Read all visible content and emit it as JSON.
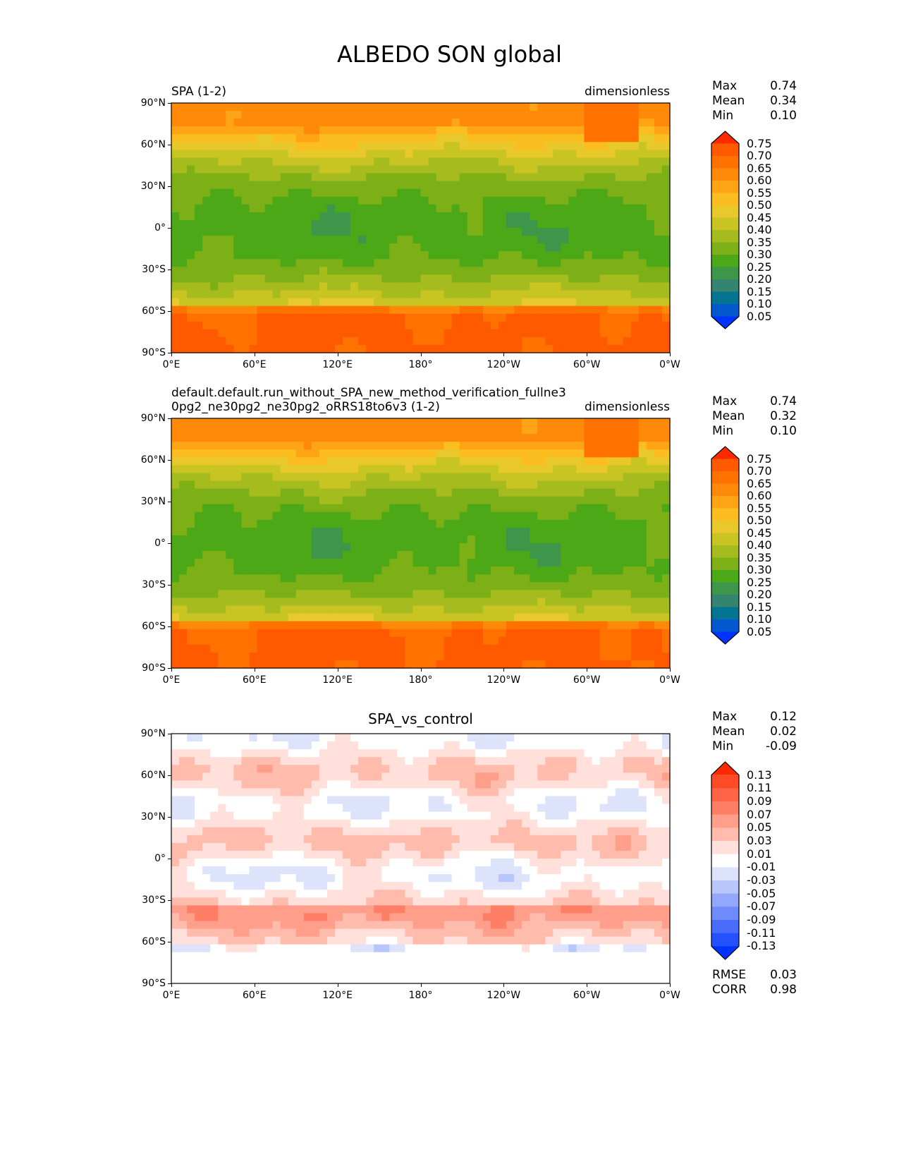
{
  "chart_data": {
    "type": "heatmap",
    "title": "ALBEDO SON global",
    "x_ticks": [
      "0°E",
      "60°E",
      "120°E",
      "180°",
      "120°W",
      "60°W",
      "0°W"
    ],
    "y_ticks": [
      "90°N",
      "60°N",
      "30°N",
      "0°",
      "30°S",
      "60°S",
      "90°S"
    ],
    "xlim": [
      0,
      360
    ],
    "ylim": [
      -90,
      90
    ],
    "panels": [
      {
        "title_left": "SPA (1-2)",
        "title_right": "dimensionless",
        "title_center": "",
        "stats": [
          {
            "label": "Max",
            "value": "0.74"
          },
          {
            "label": "Mean",
            "value": "0.34"
          },
          {
            "label": "Min",
            "value": "0.10"
          }
        ],
        "colorbar": {
          "levels": [
            "0.75",
            "0.70",
            "0.65",
            "0.60",
            "0.55",
            "0.50",
            "0.45",
            "0.40",
            "0.35",
            "0.30",
            "0.25",
            "0.20",
            "0.15",
            "0.10",
            "0.05"
          ],
          "colors": [
            "#ff2a00",
            "#ff5a00",
            "#ff7200",
            "#ff8a0a",
            "#ffa515",
            "#fbbd20",
            "#e8c82a",
            "#c8c422",
            "#a6bc1e",
            "#7cb016",
            "#4ca816",
            "#3e964a",
            "#348470",
            "#037592",
            "#0258cc",
            "#0033ff"
          ]
        },
        "mean_value": 0.34
      },
      {
        "title_left": "default.default.run_without_SPA_new_method_verification_fullne30pg2_ne30pg2_ne30pg2_oRRS18to6v3 (1-2)",
        "title_right": "dimensionless",
        "title_center": "",
        "stats": [
          {
            "label": "Max",
            "value": "0.74"
          },
          {
            "label": "Mean",
            "value": "0.32"
          },
          {
            "label": "Min",
            "value": "0.10"
          }
        ],
        "colorbar": {
          "levels": [
            "0.75",
            "0.70",
            "0.65",
            "0.60",
            "0.55",
            "0.50",
            "0.45",
            "0.40",
            "0.35",
            "0.30",
            "0.25",
            "0.20",
            "0.15",
            "0.10",
            "0.05"
          ],
          "colors": [
            "#ff2a00",
            "#ff5a00",
            "#ff7200",
            "#ff8a0a",
            "#ffa515",
            "#fbbd20",
            "#e8c82a",
            "#c8c422",
            "#a6bc1e",
            "#7cb016",
            "#4ca816",
            "#3e964a",
            "#348470",
            "#037592",
            "#0258cc",
            "#0033ff"
          ]
        },
        "mean_value": 0.32
      },
      {
        "title_left": "",
        "title_right": "",
        "title_center": "SPA_vs_control",
        "stats": [
          {
            "label": "Max",
            "value": "0.12"
          },
          {
            "label": "Mean",
            "value": "0.02"
          },
          {
            "label": "Min",
            "value": "-0.09"
          }
        ],
        "colorbar": {
          "levels": [
            "0.13",
            "0.11",
            "0.09",
            "0.07",
            "0.05",
            "0.03",
            "0.01",
            "-0.01",
            "-0.03",
            "-0.05",
            "-0.07",
            "-0.09",
            "-0.11",
            "-0.13"
          ],
          "colors": [
            "#ff2a00",
            "#ff4a26",
            "#ff6447",
            "#ff7f66",
            "#ff9e8a",
            "#ffbcad",
            "#ffe0da",
            "#ffffff",
            "#dde3fb",
            "#b8c6fb",
            "#93a8fb",
            "#6e8afb",
            "#496cfb",
            "#2450fd",
            "#0033ff"
          ]
        },
        "mean_value": 0.02
      }
    ],
    "bottom_stats": [
      {
        "label": "RMSE",
        "value": "0.03"
      },
      {
        "label": "CORR",
        "value": "0.98"
      }
    ]
  }
}
